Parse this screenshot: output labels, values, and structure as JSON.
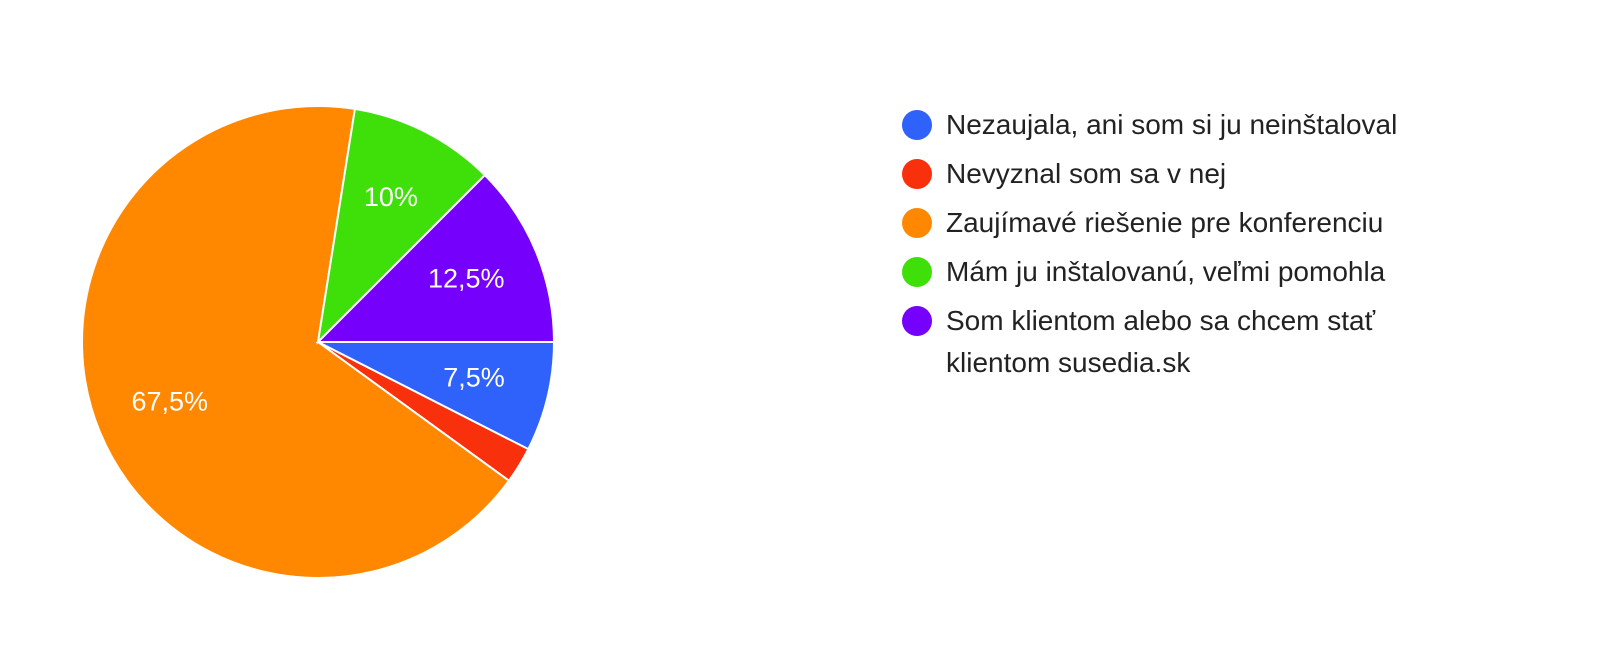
{
  "chart_data": {
    "type": "pie",
    "categories": [
      "Nezaujala, ani som si ju neinštaloval",
      "Nevyznal som sa v nej",
      "Zaujímavé riešenie pre konferenciu",
      "Mám ju inštalovanú, veľmi pomohla",
      "Som klientom alebo sa chcem stať klientom susedia.sk"
    ],
    "values": [
      7.5,
      2.5,
      67.5,
      10,
      12.5
    ],
    "value_labels": [
      "7,5%",
      null,
      "67,5%",
      "10%",
      "12,5%"
    ],
    "colors": [
      "#2e62fb",
      "#f8300c",
      "#ff8800",
      "#3fe00a",
      "#7500fb"
    ],
    "legend": "right"
  }
}
